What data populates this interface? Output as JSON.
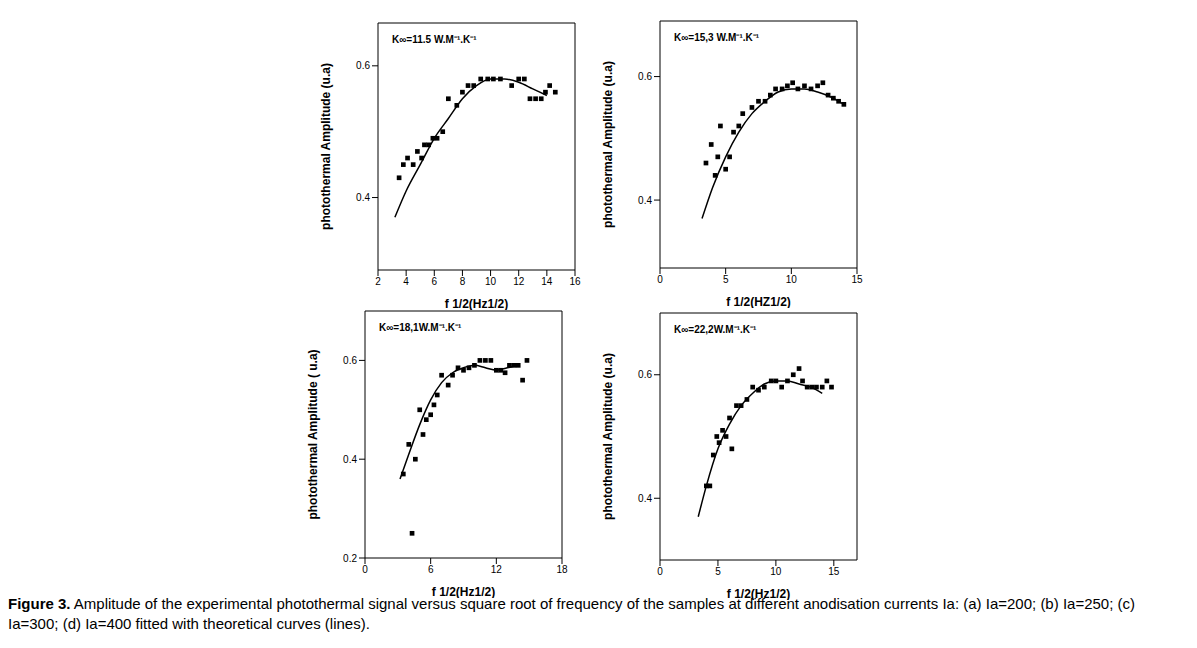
{
  "chart_data": [
    {
      "type": "scatter",
      "annotation": "K∞=11.5 W.M⁻¹.K⁻¹",
      "x_label": "f 1/2(Hz1/2)",
      "y_label": "photothermal Amplitude (u.a)",
      "xlim": [
        2,
        16
      ],
      "xticks": [
        2,
        4,
        6,
        8,
        10,
        12,
        14,
        16
      ],
      "ylim": [
        0.29,
        0.665
      ],
      "yticks": [
        0.4,
        0.6
      ],
      "series": [
        {
          "type": "scatter",
          "marker": "square",
          "color": "#000000",
          "x": [
            3.5,
            3.8,
            4.1,
            4.5,
            4.8,
            5.1,
            5.3,
            5.6,
            5.9,
            6.2,
            6.6,
            7.0,
            7.6,
            8.0,
            8.4,
            8.8,
            9.3,
            9.8,
            10.2,
            10.7,
            11.5,
            12.0,
            12.4,
            12.8,
            13.2,
            13.6,
            13.9,
            14.2,
            14.6
          ],
          "values": [
            0.43,
            0.45,
            0.46,
            0.45,
            0.47,
            0.46,
            0.48,
            0.48,
            0.49,
            0.49,
            0.5,
            0.55,
            0.54,
            0.56,
            0.57,
            0.57,
            0.58,
            0.58,
            0.58,
            0.58,
            0.57,
            0.58,
            0.58,
            0.55,
            0.55,
            0.55,
            0.56,
            0.57,
            0.56
          ]
        },
        {
          "type": "line",
          "line_style": "solid",
          "color": "#000000",
          "x": [
            3.2,
            4,
            5,
            6,
            7,
            8,
            9,
            10,
            11,
            12,
            13,
            14
          ],
          "values": [
            0.37,
            0.41,
            0.45,
            0.49,
            0.52,
            0.55,
            0.57,
            0.58,
            0.58,
            0.575,
            0.565,
            0.555
          ]
        }
      ]
    },
    {
      "type": "scatter",
      "annotation": "K∞=15,3 W.M⁻¹.K⁻¹",
      "x_label": "f 1/2(HZ1/2)",
      "y_label": "photothermal Amplitude (u.a)",
      "xlim": [
        0,
        15
      ],
      "xticks": [
        0,
        5,
        10,
        15
      ],
      "ylim": [
        0.29,
        0.69
      ],
      "yticks": [
        0.4,
        0.6
      ],
      "series": [
        {
          "type": "scatter",
          "marker": "square",
          "color": "#000000",
          "x": [
            3.5,
            3.9,
            4.2,
            4.4,
            4.6,
            5.0,
            5.3,
            5.6,
            6.0,
            6.3,
            7.0,
            7.5,
            8.0,
            8.4,
            8.8,
            9.3,
            9.7,
            10.1,
            10.5,
            11.0,
            11.5,
            12.0,
            12.4,
            12.8,
            13.2,
            13.6,
            14.0
          ],
          "values": [
            0.46,
            0.49,
            0.44,
            0.47,
            0.52,
            0.45,
            0.47,
            0.51,
            0.52,
            0.54,
            0.55,
            0.56,
            0.56,
            0.57,
            0.58,
            0.58,
            0.585,
            0.59,
            0.58,
            0.585,
            0.58,
            0.585,
            0.59,
            0.57,
            0.565,
            0.56,
            0.555
          ]
        },
        {
          "type": "line",
          "line_style": "solid",
          "color": "#000000",
          "x": [
            3.2,
            4,
            5,
            6,
            7,
            8,
            9,
            10,
            11,
            12,
            13,
            14
          ],
          "values": [
            0.37,
            0.42,
            0.47,
            0.51,
            0.54,
            0.56,
            0.575,
            0.58,
            0.58,
            0.575,
            0.567,
            0.555
          ]
        }
      ]
    },
    {
      "type": "scatter",
      "annotation": "K∞=18,1W.M⁻¹.K⁻¹",
      "x_label": "f 1/2(Hz1/2)",
      "y_label": "photothermal Amplitude ( u.a)",
      "xlim": [
        0,
        18
      ],
      "xticks": [
        0,
        6,
        12,
        18
      ],
      "ylim": [
        0.2,
        0.7
      ],
      "yticks": [
        0.2,
        0.4,
        0.6
      ],
      "series": [
        {
          "type": "scatter",
          "marker": "square",
          "color": "#000000",
          "x": [
            3.5,
            4.0,
            4.3,
            4.6,
            5.0,
            5.3,
            5.6,
            6.0,
            6.3,
            6.6,
            7.0,
            7.6,
            8.0,
            8.5,
            9.0,
            9.5,
            10.0,
            10.5,
            11.0,
            11.5,
            12.0,
            12.4,
            12.8,
            13.2,
            13.6,
            14.0,
            14.4,
            14.8
          ],
          "values": [
            0.37,
            0.43,
            0.25,
            0.4,
            0.5,
            0.45,
            0.48,
            0.49,
            0.51,
            0.53,
            0.57,
            0.55,
            0.57,
            0.585,
            0.58,
            0.585,
            0.59,
            0.6,
            0.6,
            0.6,
            0.58,
            0.58,
            0.575,
            0.59,
            0.59,
            0.59,
            0.56,
            0.6
          ]
        },
        {
          "type": "line",
          "line_style": "solid",
          "color": "#000000",
          "x": [
            3.2,
            4,
            5,
            6,
            7,
            8,
            9,
            10,
            11,
            12,
            13,
            14
          ],
          "values": [
            0.36,
            0.41,
            0.47,
            0.52,
            0.555,
            0.575,
            0.585,
            0.59,
            0.585,
            0.58,
            0.585,
            0.59
          ]
        }
      ]
    },
    {
      "type": "scatter",
      "annotation": "K∞=22,2W.M⁻¹.K⁻¹",
      "x_label": "f 1/2(Hz1/2)",
      "y_label": "photothermal Amplitude (u.a)",
      "xlim": [
        0,
        17
      ],
      "xticks": [
        0,
        5,
        10,
        15
      ],
      "ylim": [
        0.3,
        0.7
      ],
      "yticks": [
        0.4,
        0.6
      ],
      "series": [
        {
          "type": "scatter",
          "marker": "square",
          "color": "#000000",
          "x": [
            4.0,
            4.3,
            4.6,
            4.9,
            5.1,
            5.4,
            5.7,
            6.0,
            6.2,
            6.6,
            7.0,
            7.5,
            8.0,
            8.5,
            9.0,
            9.6,
            10.0,
            10.5,
            11.0,
            11.5,
            12.0,
            12.3,
            12.7,
            13.1,
            13.5,
            14.0,
            14.4,
            14.8
          ],
          "values": [
            0.42,
            0.42,
            0.47,
            0.5,
            0.49,
            0.51,
            0.5,
            0.53,
            0.48,
            0.55,
            0.55,
            0.56,
            0.58,
            0.575,
            0.58,
            0.59,
            0.59,
            0.58,
            0.59,
            0.6,
            0.61,
            0.59,
            0.58,
            0.58,
            0.58,
            0.58,
            0.59,
            0.58
          ]
        },
        {
          "type": "line",
          "line_style": "solid",
          "color": "#000000",
          "x": [
            3.3,
            4,
            5,
            6,
            7,
            8,
            9,
            10,
            11,
            12,
            13,
            14
          ],
          "values": [
            0.37,
            0.42,
            0.48,
            0.52,
            0.55,
            0.57,
            0.585,
            0.59,
            0.59,
            0.585,
            0.58,
            0.57
          ]
        }
      ]
    }
  ],
  "caption": {
    "label": "Figure 3.",
    "text": "Amplitude of the experimental photothermal signal versus square root of frequency of the samples at different anodisation currents Ia: (a) Ia=200; (b) Ia=250; (c) Ia=300; (d) Ia=400 fitted with theoretical curves (lines)."
  }
}
